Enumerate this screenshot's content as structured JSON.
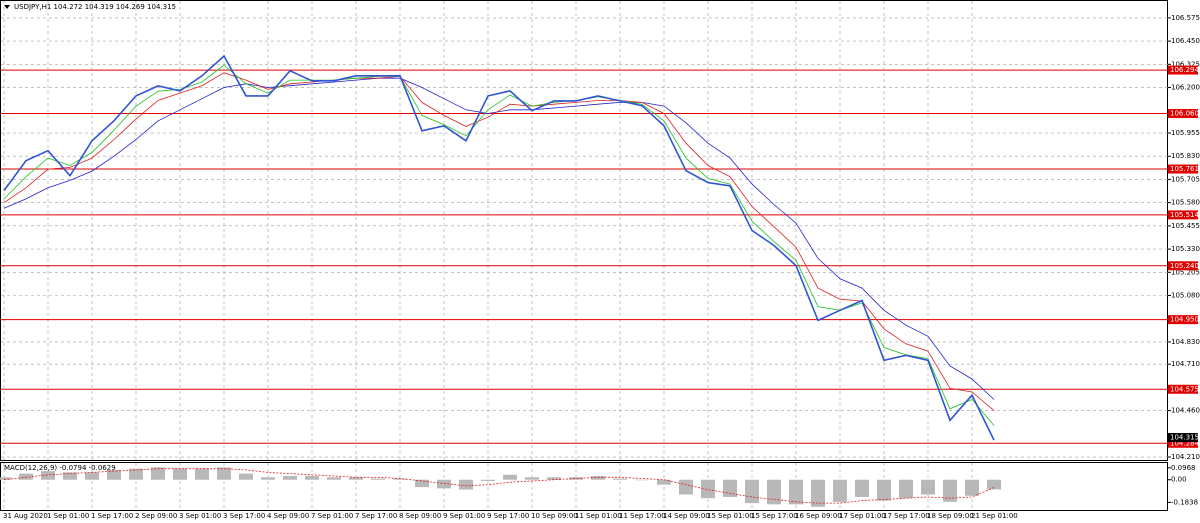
{
  "chart_data": [
    {
      "type": "line",
      "title": "USDJPY,H1  104.272 104.319 104.269 104.315",
      "categories": [
        "31 Aug 2020",
        null,
        "1 Sep 01:00",
        null,
        "1 Sep 17:00",
        null,
        "2 Sep 09:00",
        null,
        "3 Sep 01:00",
        null,
        "3 Sep 17:00",
        null,
        "4 Sep 09:00",
        null,
        "7 Sep 01:00",
        null,
        "7 Sep 17:00",
        null,
        "8 Sep 09:00",
        null,
        "9 Sep 01:00",
        null,
        "9 Sep 17:00",
        null,
        "10 Sep 09:00",
        null,
        "11 Sep 01:00",
        null,
        "11 Sep 17:00",
        null,
        "14 Sep 09:00",
        null,
        "15 Sep 01:00",
        null,
        "15 Sep 17:00",
        null,
        "16 Sep 09:00",
        null,
        "17 Sep 01:00",
        null,
        "17 Sep 17:00",
        null,
        "18 Sep 09:00",
        null,
        "21 Sep 01:00",
        null
      ],
      "series": [
        {
          "color": "#2f55d4",
          "width": 1.6,
          "values": [
            105.645,
            105.806,
            105.86,
            105.725,
            105.913,
            106.021,
            106.155,
            106.209,
            106.182,
            106.263,
            106.37,
            106.155,
            106.155,
            106.29,
            106.236,
            106.236,
            106.263,
            106.263,
            106.263,
            105.967,
            105.994,
            105.913,
            106.155,
            106.182,
            106.075,
            106.128,
            106.128,
            106.155,
            106.128,
            106.102,
            105.994,
            105.752,
            105.688,
            105.671,
            105.43,
            105.349,
            105.241,
            104.946,
            105.0,
            105.053,
            104.731,
            104.758,
            104.731,
            104.408,
            104.543,
            104.301
          ]
        },
        {
          "color": "#22c022",
          "width": 0.8,
          "values": [
            105.6,
            105.72,
            105.82,
            105.78,
            105.85,
            105.97,
            106.1,
            106.18,
            106.19,
            106.23,
            106.32,
            106.22,
            106.17,
            106.24,
            106.24,
            106.24,
            106.25,
            106.26,
            106.26,
            106.05,
            106.0,
            105.94,
            106.08,
            106.16,
            106.1,
            106.12,
            106.13,
            106.15,
            106.13,
            106.11,
            106.02,
            105.82,
            105.71,
            105.68,
            105.48,
            105.37,
            105.27,
            105.02,
            105.0,
            105.04,
            104.8,
            104.76,
            104.74,
            104.47,
            104.52,
            104.38
          ]
        },
        {
          "color": "#e02020",
          "width": 0.8,
          "values": [
            105.58,
            105.66,
            105.76,
            105.77,
            105.82,
            105.92,
            106.03,
            106.13,
            106.17,
            106.21,
            106.28,
            106.24,
            106.19,
            106.22,
            106.23,
            106.24,
            106.25,
            106.25,
            106.26,
            106.12,
            106.05,
            105.99,
            106.04,
            106.11,
            106.1,
            106.11,
            106.12,
            106.13,
            106.13,
            106.12,
            106.06,
            105.9,
            105.78,
            105.72,
            105.56,
            105.45,
            105.34,
            105.12,
            105.06,
            105.05,
            104.9,
            104.82,
            104.78,
            104.58,
            104.56,
            104.46
          ]
        },
        {
          "color": "#2020d0",
          "width": 0.8,
          "values": [
            105.55,
            105.6,
            105.66,
            105.7,
            105.75,
            105.83,
            105.92,
            106.02,
            106.08,
            106.14,
            106.2,
            106.22,
            106.2,
            106.21,
            106.22,
            106.23,
            106.24,
            106.25,
            106.25,
            106.2,
            106.14,
            106.08,
            106.06,
            106.08,
            106.08,
            106.09,
            106.1,
            106.11,
            106.12,
            106.12,
            106.1,
            106.01,
            105.9,
            105.82,
            105.68,
            105.57,
            105.47,
            105.28,
            105.17,
            105.12,
            105.0,
            104.92,
            104.86,
            104.7,
            104.63,
            104.52
          ]
        }
      ],
      "ylim": [
        104.194,
        106.666
      ],
      "yticks": [
        106.575,
        {
          "value": 106.45,
          "label": "106.450"
        },
        106.325,
        {
          "value": 106.2,
          "label": "106.200"
        },
        105.955,
        {
          "value": 105.83,
          "label": "105.830"
        },
        105.705,
        {
          "value": 105.58,
          "label": "105.580"
        },
        105.455,
        {
          "value": 105.33,
          "label": "105.330"
        },
        105.205,
        {
          "value": 105.08,
          "label": "105.080"
        },
        {
          "value": 104.83,
          "label": "104.830"
        },
        {
          "value": 104.71,
          "label": "104.710"
        },
        {
          "value": 104.46,
          "label": "104.460"
        },
        {
          "value": 104.21,
          "label": "104.210"
        }
      ],
      "grid": true,
      "levels": [
        106.294,
        {
          "value": 106.06,
          "label": "106.060"
        },
        105.761,
        105.514,
        {
          "value": 105.24,
          "label": "105.240"
        },
        {
          "value": 104.95,
          "label": "104.950"
        },
        104.575,
        104.284
      ],
      "level_color": "#e00000",
      "last_price": 104.315
    },
    {
      "type": "macd",
      "title": "MACD(12,26,9) -0.0794 -0.0629",
      "ylim": [
        -0.246,
        0.136
      ],
      "yticks": [
        0.0968,
        {
          "value": 0,
          "label": "0.00"
        },
        -0.1838
      ],
      "histogram": {
        "color": "#b8b8b8",
        "values": [
          0.02,
          0.05,
          0.07,
          0.06,
          0.06,
          0.08,
          0.09,
          0.1,
          0.09,
          0.09,
          0.1,
          0.05,
          0.02,
          0.03,
          0.03,
          0.02,
          0.02,
          0.01,
          0.01,
          -0.06,
          -0.07,
          -0.08,
          -0.01,
          0.04,
          0.02,
          0.02,
          0.02,
          0.03,
          0.01,
          0.0,
          -0.04,
          -0.12,
          -0.15,
          -0.14,
          -0.19,
          -0.2,
          -0.2,
          -0.22,
          -0.18,
          -0.14,
          -0.17,
          -0.15,
          -0.12,
          -0.18,
          -0.13,
          -0.079
        ]
      },
      "signal": {
        "color": "#e02020",
        "values": [
          0.0,
          0.02,
          0.04,
          0.05,
          0.06,
          0.07,
          0.08,
          0.09,
          0.09,
          0.09,
          0.09,
          0.08,
          0.06,
          0.05,
          0.04,
          0.03,
          0.02,
          0.02,
          0.01,
          -0.01,
          -0.03,
          -0.05,
          -0.04,
          -0.02,
          -0.01,
          0.0,
          0.01,
          0.02,
          0.02,
          0.01,
          0.0,
          -0.04,
          -0.08,
          -0.11,
          -0.14,
          -0.16,
          -0.18,
          -0.19,
          -0.19,
          -0.17,
          -0.16,
          -0.15,
          -0.14,
          -0.15,
          -0.14,
          -0.063
        ]
      }
    }
  ]
}
